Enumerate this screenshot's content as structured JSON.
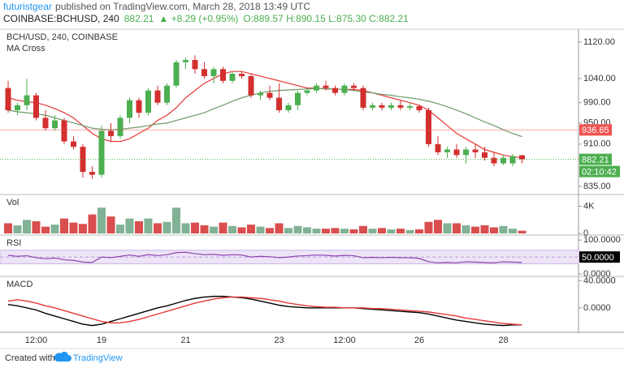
{
  "header": {
    "author": "futuristgear",
    "published": "published on TradingView.com, March 28, 2018 13:49 UTC",
    "symbol": "COINBASE:BCHUSD, 240",
    "price": "882.21",
    "change": "▲ +8.29 (+0.95%)",
    "ohlc": "O:889.57 H:890.15 L:875.30 C:882.21"
  },
  "footer": {
    "created": "Created with",
    "brand": "TradingView"
  },
  "chart_data": [
    {
      "type": "candlestick",
      "title": "BCH/USD, 240, COINBASE",
      "subtitle": "MA Cross",
      "categories": [
        null,
        null,
        null,
        "12:00",
        null,
        null,
        null,
        null,
        null,
        null,
        "19",
        null,
        null,
        null,
        null,
        null,
        null,
        null,
        null,
        "21",
        null,
        null,
        null,
        null,
        null,
        null,
        null,
        null,
        null,
        "23",
        null,
        null,
        null,
        null,
        null,
        null,
        "12:00",
        null,
        null,
        null,
        null,
        null,
        null,
        null,
        "26",
        null,
        null,
        null,
        null,
        null,
        null,
        null,
        null,
        "28",
        null,
        null
      ],
      "open": [
        1020,
        975,
        985,
        1005,
        960,
        940,
        955,
        915,
        905,
        860,
        855,
        935,
        925,
        960,
        995,
        970,
        1015,
        990,
        1025,
        1075,
        1080,
        1060,
        1045,
        1060,
        1035,
        1050,
        1045,
        1005,
        1010,
        1000,
        975,
        985,
        1010,
        1015,
        1025,
        1020,
        1010,
        1025,
        1020,
        980,
        985,
        980,
        985,
        980,
        983,
        975,
        910,
        895,
        900,
        890,
        900,
        895,
        885,
        875,
        875,
        889.57
      ],
      "high": [
        1035,
        990,
        1040,
        1010,
        975,
        965,
        960,
        925,
        910,
        870,
        945,
        950,
        965,
        1000,
        1000,
        1020,
        1025,
        1030,
        1080,
        1085,
        1090,
        1075,
        1065,
        1065,
        1055,
        1055,
        1050,
        1015,
        1025,
        1030,
        990,
        1015,
        1020,
        1030,
        1035,
        1025,
        1030,
        1030,
        1025,
        990,
        990,
        990,
        995,
        990,
        985,
        980,
        925,
        905,
        910,
        905,
        910,
        905,
        895,
        890,
        892,
        890.15
      ],
      "low": [
        970,
        965,
        975,
        955,
        935,
        935,
        910,
        900,
        850,
        848,
        850,
        915,
        920,
        950,
        960,
        965,
        985,
        985,
        1020,
        1060,
        1050,
        1040,
        1030,
        1030,
        1030,
        1040,
        1000,
        995,
        995,
        970,
        970,
        975,
        1005,
        1010,
        1015,
        1005,
        1005,
        1015,
        975,
        975,
        975,
        975,
        975,
        975,
        970,
        905,
        890,
        885,
        885,
        875,
        885,
        880,
        870,
        872,
        870,
        875.3
      ],
      "close": [
        975,
        985,
        1005,
        960,
        940,
        955,
        915,
        905,
        860,
        855,
        935,
        925,
        960,
        995,
        970,
        1015,
        990,
        1025,
        1075,
        1080,
        1060,
        1045,
        1060,
        1035,
        1050,
        1045,
        1005,
        1010,
        1000,
        975,
        985,
        1010,
        1015,
        1025,
        1020,
        1010,
        1025,
        1020,
        980,
        985,
        980,
        985,
        980,
        983,
        975,
        910,
        895,
        900,
        890,
        900,
        895,
        885,
        875,
        885,
        888,
        882.21
      ],
      "up_color": "#4caf50",
      "down_color": "#d32f2f",
      "series": [
        {
          "color": "#e53935",
          "values": [
            1000,
            995,
            992,
            990,
            985,
            978,
            970,
            960,
            945,
            930,
            920,
            915,
            915,
            920,
            930,
            940,
            955,
            965,
            980,
            1000,
            1015,
            1030,
            1040,
            1050,
            1055,
            1055,
            1050,
            1045,
            1040,
            1035,
            1030,
            1025,
            1020,
            1020,
            1018,
            1018,
            1017,
            1017,
            1015,
            1010,
            1005,
            1000,
            995,
            990,
            985,
            975,
            960,
            945,
            930,
            920,
            910,
            900,
            895,
            890,
            887,
            885
          ]
        },
        {
          "color": "#6d9b6a",
          "values": [
            975,
            972,
            970,
            968,
            965,
            960,
            955,
            950,
            945,
            940,
            938,
            937,
            938,
            940,
            942,
            945,
            948,
            950,
            955,
            960,
            965,
            970,
            978,
            985,
            993,
            1000,
            1005,
            1010,
            1013,
            1015,
            1016,
            1017,
            1018,
            1019,
            1019,
            1018,
            1017,
            1015,
            1012,
            1010,
            1007,
            1005,
            1002,
            1000,
            997,
            993,
            988,
            982,
            975,
            968,
            960,
            952,
            945,
            937,
            930,
            924
          ]
        }
      ],
      "log": true,
      "ylim": [
        824,
        1146
      ],
      "yticks": [
        {
          "value": 1120,
          "label": "1120.00"
        },
        {
          "value": 1040,
          "label": "1040.00"
        },
        {
          "value": 990,
          "label": "990.00"
        },
        {
          "value": 950,
          "label": "950.00"
        },
        {
          "value": 910,
          "label": "910.00"
        },
        {
          "value": 835,
          "label": "835.00"
        }
      ],
      "price_line": {
        "value": 936.65,
        "color": "#ef5350"
      },
      "last_color": "#4caf50",
      "countdown": "02:10:42"
    },
    {
      "type": "bar",
      "title": "Vol",
      "values": [
        1500,
        1200,
        2000,
        1800,
        1000,
        1300,
        2200,
        1600,
        1400,
        2800,
        3800,
        2500,
        1300,
        2200,
        1800,
        2200,
        1500,
        1700,
        3800,
        1500,
        1600,
        1200,
        1000,
        1600,
        1100,
        900,
        1300,
        1000,
        800,
        1500,
        800,
        1100,
        900,
        700,
        700,
        800,
        700,
        600,
        1100,
        700,
        800,
        600,
        700,
        500,
        600,
        1700,
        2000,
        1500,
        1500,
        1200,
        1000,
        1200,
        900,
        1100,
        700,
        400
      ],
      "up_color": "#6ba583",
      "down_color": "#d32f2f",
      "ylim": [
        0,
        5500
      ],
      "yticks": [
        {
          "value": 4000,
          "label": "4K"
        },
        0
      ]
    },
    {
      "type": "line",
      "title": "RSI",
      "color": "#8e44ad",
      "values": [
        55,
        52,
        54,
        48,
        45,
        47,
        42,
        40,
        35,
        34,
        50,
        48,
        52,
        56,
        52,
        57,
        54,
        57,
        63,
        64,
        60,
        57,
        58,
        55,
        57,
        56,
        50,
        52,
        51,
        48,
        50,
        53,
        54,
        56,
        55,
        53,
        55,
        54,
        48,
        49,
        48,
        49,
        48,
        48,
        46,
        36,
        33,
        34,
        33,
        36,
        35,
        34,
        33,
        36,
        35,
        34
      ],
      "band": [
        30,
        70
      ],
      "mid": {
        "value": 50,
        "label": "50.0000"
      },
      "ylim": [
        0,
        110
      ],
      "yticks": [
        {
          "value": 100,
          "label": "100.0000"
        },
        {
          "value": 0,
          "label": "0.0000"
        }
      ]
    },
    {
      "type": "line",
      "title": "MACD",
      "series": [
        {
          "color": "#000000",
          "values": [
            5,
            3,
            0,
            -3,
            -8,
            -12,
            -16,
            -20,
            -24,
            -26,
            -24,
            -20,
            -16,
            -12,
            -8,
            -4,
            0,
            3,
            7,
            11,
            14,
            16,
            17,
            17,
            16,
            15,
            13,
            10,
            7,
            4,
            2,
            1,
            0,
            0,
            0,
            0,
            0,
            0,
            -1,
            -2,
            -3,
            -4,
            -5,
            -6,
            -7,
            -9,
            -12,
            -15,
            -18,
            -20,
            -22,
            -24,
            -25,
            -26,
            -25,
            -25
          ]
        },
        {
          "color": "#e53935",
          "values": [
            10,
            12,
            10,
            7,
            3,
            0,
            -4,
            -8,
            -12,
            -16,
            -20,
            -22,
            -22,
            -20,
            -17,
            -13,
            -9,
            -5,
            -1,
            3,
            7,
            10,
            13,
            15,
            16,
            16,
            15,
            14,
            12,
            10,
            7,
            5,
            3,
            2,
            1,
            1,
            0,
            0,
            0,
            -1,
            -1,
            -2,
            -3,
            -4,
            -5,
            -6,
            -8,
            -10,
            -12,
            -15,
            -17,
            -19,
            -21,
            -23,
            -24,
            -25
          ]
        }
      ],
      "ylim": [
        -36,
        44
      ],
      "yticks": [
        {
          "value": 40,
          "label": "40.0000"
        },
        {
          "value": 0,
          "label": "0.0000"
        }
      ]
    }
  ]
}
